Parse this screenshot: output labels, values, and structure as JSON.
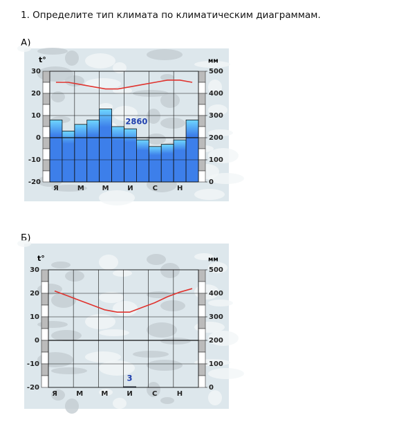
{
  "question": "1. Определите тип климата по климатическим диаграммам.",
  "chart_data": [
    {
      "type": "climate",
      "label": "А)",
      "y_label": "t°",
      "y2_label": "мм",
      "categories": [
        "Я",
        null,
        "М",
        null,
        "М",
        null,
        "И",
        null,
        "С",
        null,
        "Н",
        null
      ],
      "ylim": [
        -20,
        30
      ],
      "yticks": [
        -20,
        -10,
        0,
        10,
        20,
        30
      ],
      "y2lim": [
        0,
        500
      ],
      "y2ticks": [
        0,
        100,
        200,
        300,
        400,
        500
      ],
      "temperature": {
        "color": "#e0322d",
        "axis": "y",
        "values": [
          25,
          25,
          24,
          23,
          22,
          22,
          23,
          24,
          25,
          26,
          26,
          25
        ]
      },
      "precipitation": {
        "color": "#3d7fea",
        "axis": "y2",
        "values": [
          280,
          230,
          260,
          280,
          330,
          250,
          240,
          190,
          160,
          170,
          190,
          280
        ]
      },
      "annotation": "2860"
    },
    {
      "type": "climate",
      "label": "Б)",
      "y_label": "t°",
      "y2_label": "мм",
      "categories": [
        "Я",
        null,
        "М",
        null,
        "М",
        null,
        "И",
        null,
        "С",
        null,
        "Н",
        null
      ],
      "ylim": [
        -20,
        30
      ],
      "yticks": [
        -20,
        -10,
        0,
        10,
        20,
        30
      ],
      "y2lim": [
        0,
        500
      ],
      "y2ticks": [
        0,
        100,
        200,
        300,
        400,
        500
      ],
      "temperature": {
        "color": "#e0322d",
        "axis": "y",
        "values": [
          21,
          19,
          17,
          15,
          13,
          12,
          12,
          14,
          16,
          18.5,
          20.5,
          22
        ]
      },
      "precipitation": {
        "color": "#3d7fea",
        "axis": "y2",
        "values": [
          0,
          0,
          0,
          0,
          0,
          0,
          3,
          0,
          0,
          0,
          0,
          0
        ]
      },
      "annotation": "3"
    }
  ]
}
